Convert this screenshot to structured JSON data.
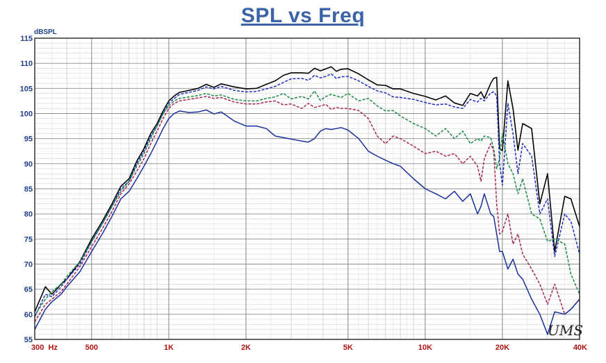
{
  "chart_data": {
    "type": "line",
    "title": "SPL vs Freq",
    "ylabel": "dBSPL",
    "xscale": "log",
    "xlim": [
      300,
      40000
    ],
    "ylim": [
      55,
      115
    ],
    "grid": true,
    "y_ticks": [
      "55",
      "60",
      "65",
      "70",
      "75",
      "80",
      "85",
      "90",
      "95",
      "100",
      "105",
      "110",
      "115"
    ],
    "x_tick_labels": [
      {
        "x": 300,
        "label": "300  Hz"
      },
      {
        "x": 500,
        "label": "500"
      },
      {
        "x": 1000,
        "label": "1K"
      },
      {
        "x": 2000,
        "label": "2K"
      },
      {
        "x": 5000,
        "label": "5K"
      },
      {
        "x": 10000,
        "label": "10K"
      },
      {
        "x": 20000,
        "label": "20K"
      },
      {
        "x": 40000,
        "label": "40K"
      }
    ],
    "signature": "UMS",
    "series": [
      {
        "color": "#000000",
        "dash": "",
        "x": [
          300,
          330,
          350,
          380,
          400,
          450,
          500,
          550,
          600,
          650,
          700,
          750,
          800,
          850,
          900,
          950,
          1000,
          1050,
          1100,
          1200,
          1300,
          1400,
          1500,
          1600,
          1800,
          2000,
          2200,
          2400,
          2600,
          2800,
          3000,
          3300,
          3500,
          3700,
          3900,
          4100,
          4300,
          4500,
          4700,
          5000,
          5500,
          6000,
          6500,
          7000,
          7500,
          8000,
          9000,
          10000,
          11000,
          12000,
          13000,
          14000,
          15000,
          16000,
          16500,
          17000,
          18000,
          18500,
          19000,
          19500,
          20000,
          21000,
          22000,
          23000,
          24000,
          26000,
          28000,
          30000,
          32000,
          35000,
          37000,
          40000
        ],
        "y": [
          60.5,
          65.5,
          64,
          66,
          67,
          70.5,
          75,
          78.5,
          82,
          85.5,
          87,
          90.5,
          93,
          96,
          98,
          100.5,
          102.5,
          103.5,
          104.2,
          104.6,
          105.0,
          105.8,
          105.2,
          105.9,
          105.3,
          104.9,
          105.0,
          105.8,
          106.5,
          107.6,
          108.1,
          108.1,
          108.0,
          109.0,
          108.5,
          108.9,
          109.3,
          108.4,
          108.8,
          108.9,
          107.9,
          106.7,
          105.7,
          105.6,
          104.9,
          104.9,
          104.0,
          103.4,
          102.7,
          103.5,
          102.1,
          101.6,
          104.0,
          103.5,
          104.3,
          103.0,
          106.0,
          107.0,
          107.2,
          93,
          92.6,
          106.5,
          101.0,
          92.7,
          98.0,
          97.0,
          82.0,
          88.0,
          72.5,
          83.5,
          83.0,
          77.5
        ]
      },
      {
        "color": "#1a2fc0",
        "dash": "4,2",
        "x": [
          300,
          330,
          350,
          380,
          400,
          450,
          500,
          550,
          600,
          650,
          700,
          750,
          800,
          850,
          900,
          950,
          1000,
          1050,
          1100,
          1200,
          1300,
          1400,
          1500,
          1600,
          1800,
          2000,
          2200,
          2400,
          2600,
          2800,
          3000,
          3300,
          3500,
          3700,
          3900,
          4100,
          4300,
          4500,
          4700,
          5000,
          5500,
          6000,
          6500,
          7000,
          7500,
          8000,
          9000,
          10000,
          11000,
          12000,
          13000,
          14000,
          15000,
          16000,
          16500,
          17000,
          18000,
          18500,
          19000,
          19500,
          20000,
          21000,
          22000,
          23000,
          24000,
          26000,
          28000,
          30000,
          32000,
          35000,
          37000,
          40000
        ],
        "y": [
          59.5,
          64,
          63.5,
          65.5,
          67,
          70,
          74.5,
          78,
          81.5,
          85,
          86.5,
          90,
          92.5,
          95.5,
          97.5,
          100,
          102,
          103,
          103.8,
          104.2,
          104.6,
          105.3,
          104.9,
          105.4,
          104.6,
          104.3,
          104.4,
          104.9,
          105.4,
          106.2,
          106.9,
          107.0,
          106.6,
          107.6,
          107.1,
          107.4,
          107.9,
          107.0,
          107.3,
          107.4,
          106.5,
          105.4,
          104.5,
          104.1,
          103.3,
          103.2,
          102.8,
          102.2,
          101.7,
          101.9,
          101.3,
          101.0,
          102.8,
          102.3,
          103.0,
          102.5,
          104.1,
          104.3,
          103.5,
          90,
          85.7,
          102,
          96.0,
          88.0,
          94.0,
          91.5,
          80.0,
          83.0,
          71.5,
          80.0,
          78.5,
          72.0
        ]
      },
      {
        "color": "#1a8a44",
        "dash": "4,2",
        "x": [
          300,
          330,
          350,
          380,
          400,
          450,
          500,
          550,
          600,
          650,
          700,
          750,
          800,
          850,
          900,
          950,
          1000,
          1050,
          1100,
          1200,
          1300,
          1400,
          1500,
          1600,
          1800,
          2000,
          2200,
          2400,
          2600,
          2800,
          3000,
          3300,
          3500,
          3700,
          3900,
          4100,
          4300,
          4500,
          4700,
          5000,
          5500,
          6000,
          6500,
          7000,
          7500,
          8000,
          9000,
          10000,
          11000,
          12000,
          13000,
          14000,
          15000,
          16000,
          16500,
          17000,
          18000,
          18500,
          19000,
          19500,
          20000,
          21000,
          22000,
          23000,
          24000,
          26000,
          28000,
          30000,
          32000,
          35000,
          37000,
          40000
        ],
        "y": [
          59.8,
          63,
          64.5,
          66,
          67.5,
          70.5,
          74.5,
          78,
          81.5,
          84.5,
          86.5,
          89.5,
          92,
          95,
          97.5,
          100,
          101.5,
          102.5,
          103.0,
          103.3,
          103.6,
          104.0,
          103.5,
          103.7,
          102.8,
          102.5,
          102.5,
          103.0,
          103.3,
          104.0,
          102.9,
          103.4,
          102.9,
          104.5,
          102.6,
          103.4,
          103.8,
          103.5,
          103.2,
          104.0,
          102.5,
          103.0,
          101.5,
          100.5,
          100.6,
          99.5,
          98.0,
          97.0,
          95.5,
          97.0,
          95.0,
          96.5,
          94.0,
          95.0,
          94.5,
          95.5,
          95.2,
          93,
          89,
          91,
          96.0,
          90.0,
          88.0,
          84.0,
          87.0,
          80.0,
          79.0,
          74.5,
          75.0,
          74.0,
          68.0,
          64.0
        ]
      },
      {
        "color": "#a8245a",
        "dash": "4,2",
        "x": [
          300,
          330,
          350,
          380,
          400,
          450,
          500,
          550,
          600,
          650,
          700,
          750,
          800,
          850,
          900,
          950,
          1000,
          1050,
          1100,
          1200,
          1300,
          1400,
          1500,
          1600,
          1800,
          2000,
          2200,
          2400,
          2600,
          2800,
          3000,
          3300,
          3500,
          3700,
          3900,
          4100,
          4300,
          4500,
          4700,
          5000,
          5500,
          6000,
          6500,
          7000,
          7500,
          8000,
          9000,
          10000,
          11000,
          12000,
          13000,
          14000,
          15000,
          16000,
          16500,
          17000,
          18000,
          18500,
          19000,
          19500,
          20000,
          21000,
          22000,
          23000,
          24000,
          26000,
          28000,
          30000,
          32000,
          35000,
          37000,
          40000
        ],
        "y": [
          58.5,
          62,
          63,
          64.5,
          66,
          69.5,
          73.5,
          77,
          80.5,
          84,
          86,
          88.5,
          91,
          94,
          96.5,
          99,
          101,
          102,
          102.5,
          102.8,
          103.1,
          103.4,
          103.0,
          103.2,
          102.3,
          101.9,
          101.9,
          102.3,
          102.5,
          101.7,
          101.9,
          101.0,
          102.0,
          101.2,
          101.5,
          101.8,
          100.8,
          101.2,
          101.0,
          101.0,
          100.6,
          99.0,
          95.5,
          94.0,
          95.5,
          95.0,
          93.5,
          92.0,
          92.5,
          91.5,
          92.0,
          90.0,
          91.5,
          89.5,
          86.5,
          91.0,
          94.0,
          92.5,
          82.0,
          76.0,
          76.5,
          80.0,
          74.0,
          76.0,
          72.0,
          69.0,
          66.0,
          62.0,
          66.0,
          60.0,
          61.0,
          63.0
        ]
      },
      {
        "color": "#1a2f9c",
        "dash": "",
        "x": [
          300,
          330,
          350,
          380,
          400,
          450,
          500,
          550,
          600,
          650,
          700,
          750,
          800,
          850,
          900,
          950,
          1000,
          1050,
          1100,
          1200,
          1300,
          1400,
          1500,
          1600,
          1800,
          2000,
          2200,
          2400,
          2600,
          2800,
          3000,
          3300,
          3500,
          3700,
          3900,
          4100,
          4300,
          4500,
          4700,
          5000,
          5500,
          6000,
          6500,
          7000,
          7500,
          8000,
          9000,
          10000,
          11000,
          12000,
          13000,
          14000,
          15000,
          16000,
          16500,
          17000,
          18000,
          18500,
          19000,
          19500,
          20000,
          21000,
          22000,
          23000,
          24000,
          26000,
          28000,
          30000,
          32000,
          35000,
          37000,
          40000
        ],
        "y": [
          57,
          61,
          62.5,
          64,
          65.5,
          68.5,
          72.5,
          76,
          79.5,
          83,
          84.5,
          87,
          89.5,
          92,
          94.5,
          97,
          99,
          100,
          100.5,
          100.2,
          100.3,
          100.7,
          99.9,
          100.3,
          98.5,
          97.5,
          97.5,
          97.0,
          95.5,
          95.2,
          94.9,
          94.5,
          94.3,
          95.0,
          96.5,
          97.0,
          96.8,
          97.0,
          97.2,
          96.7,
          95.0,
          92.5,
          91.5,
          90.7,
          90.0,
          89.5,
          87.0,
          85.0,
          84.0,
          83.0,
          84.5,
          82.5,
          84.0,
          80.0,
          81.5,
          84.0,
          80.0,
          79.5,
          76.0,
          72.5,
          72.5,
          69.0,
          71.0,
          68.0,
          67.0,
          63.0,
          60.0,
          56.0,
          60.5,
          60.0,
          61.0,
          63.0
        ]
      }
    ]
  }
}
